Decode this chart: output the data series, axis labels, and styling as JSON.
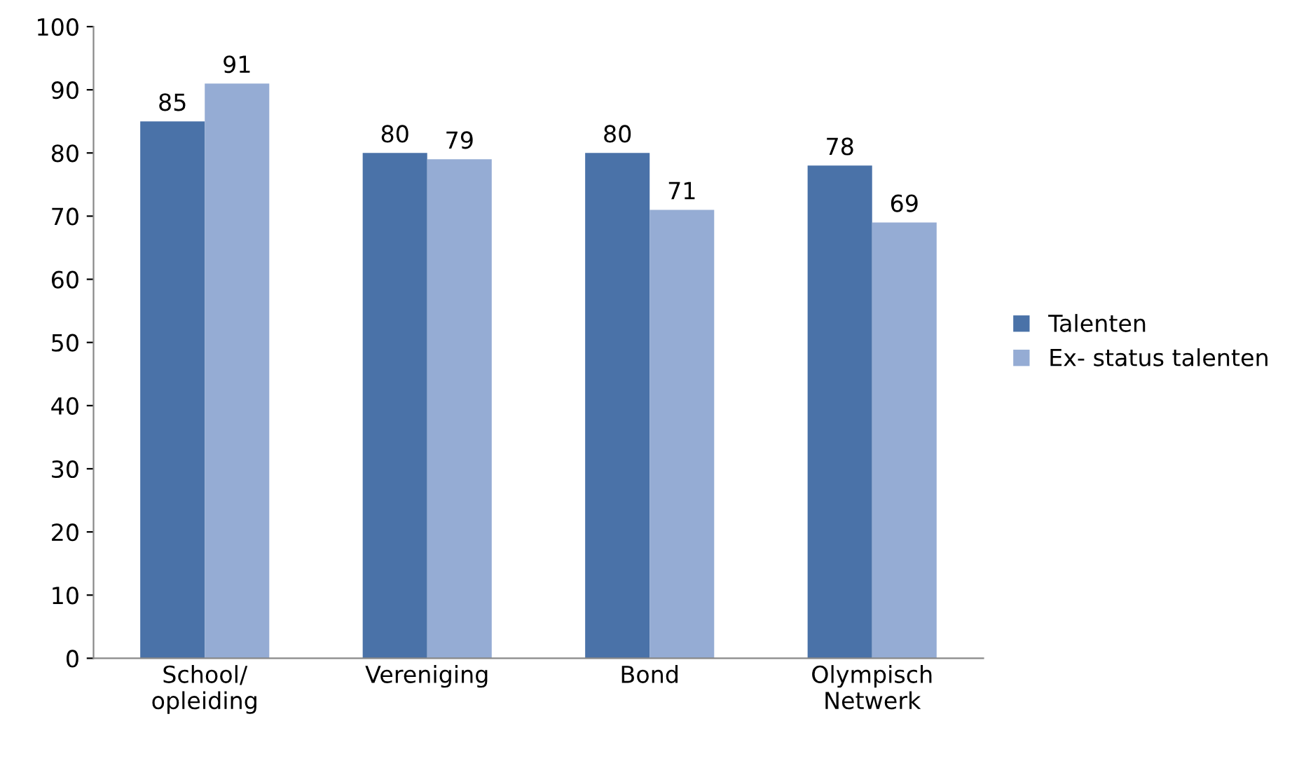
{
  "chart_data": {
    "type": "bar",
    "categories": [
      "School/\nopleiding",
      "Vereniging",
      "Bond",
      "Olympisch\nNetwerk"
    ],
    "series": [
      {
        "name": "Talenten",
        "color": "#4a72a8",
        "values": [
          85,
          80,
          80,
          78
        ]
      },
      {
        "name": "Ex- status talenten",
        "color": "#95acd4",
        "values": [
          91,
          79,
          71,
          69
        ]
      }
    ],
    "ylim": [
      0,
      100
    ],
    "yticks": [
      0,
      10,
      20,
      30,
      40,
      50,
      60,
      70,
      80,
      90,
      100
    ],
    "grid": false,
    "legend": "right",
    "data_labels": true
  }
}
